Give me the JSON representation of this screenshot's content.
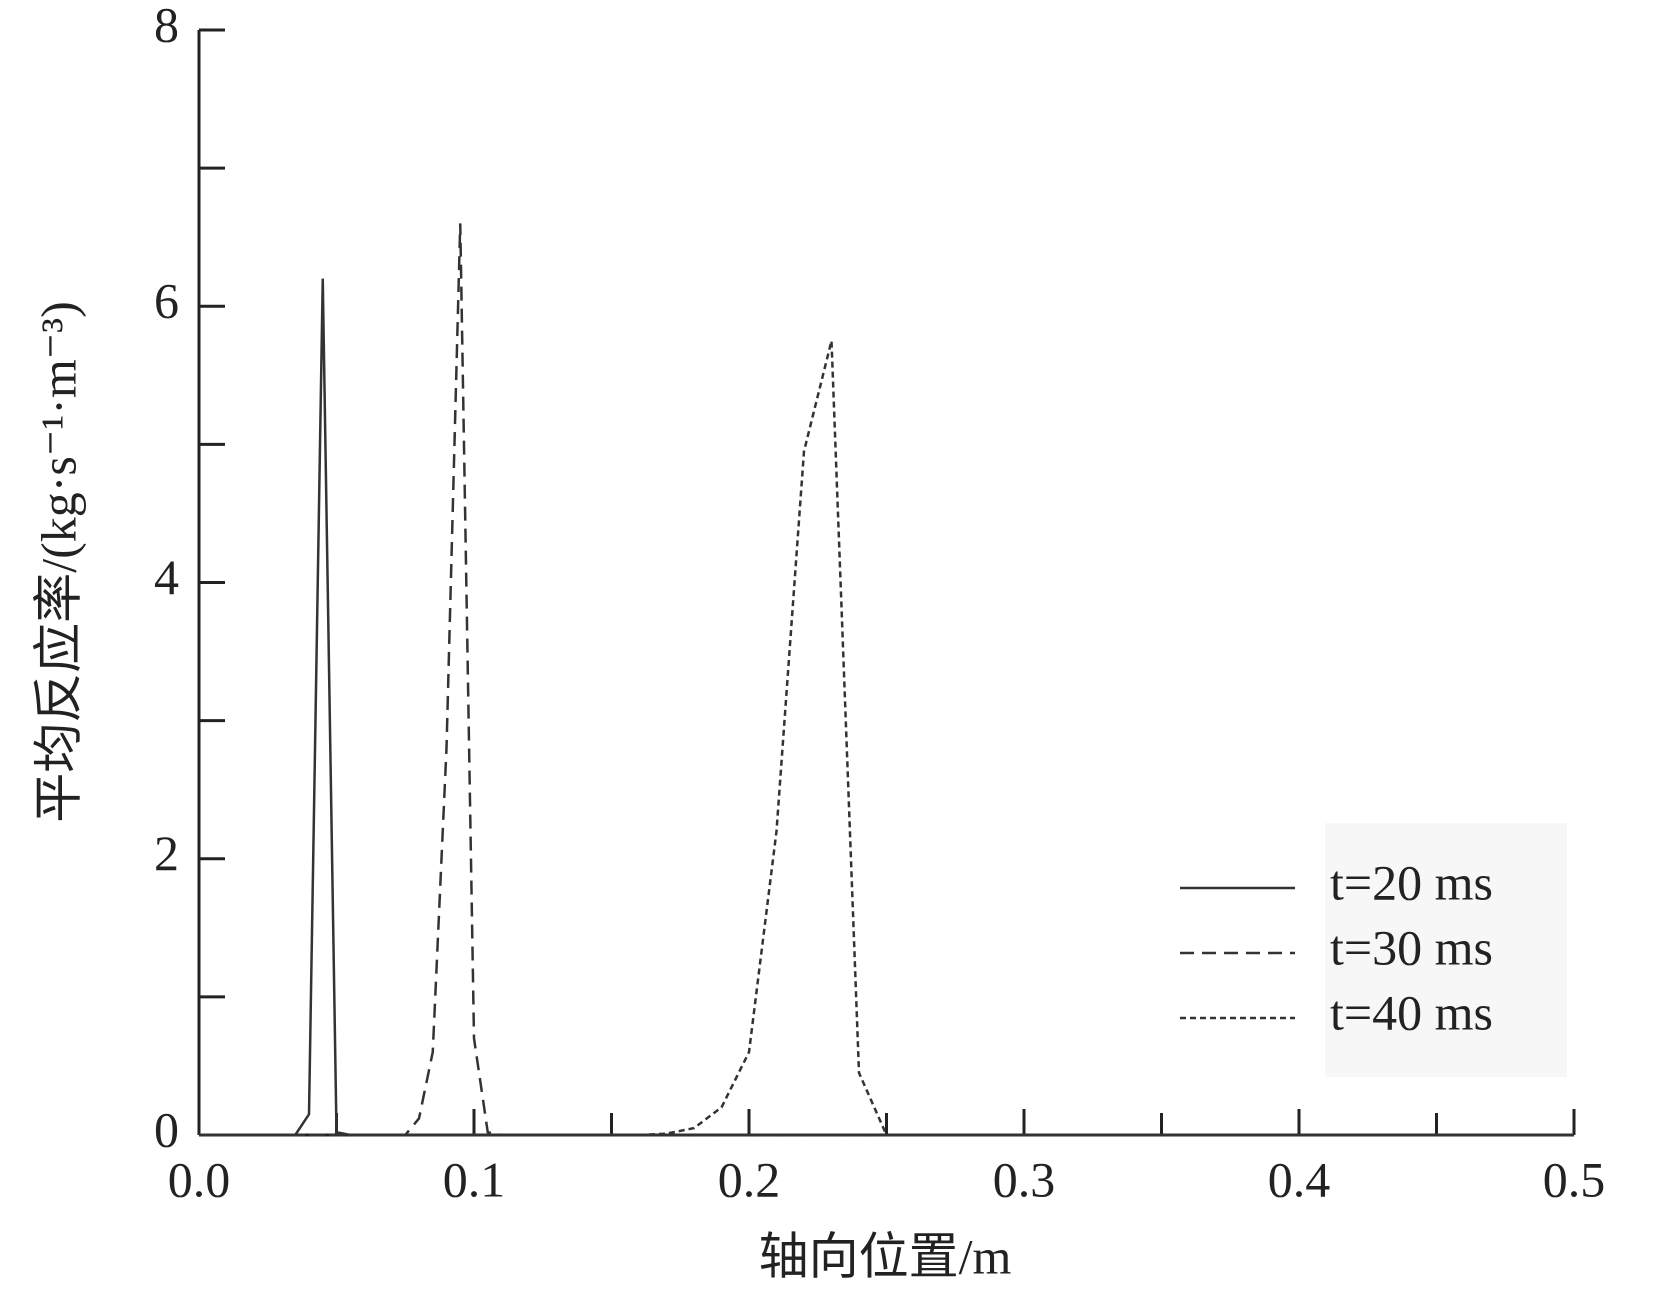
{
  "chart_data": {
    "type": "line",
    "xlabel": "轴向位置/m",
    "ylabel": "平均反应率/(kg·s⁻¹·m⁻³)",
    "xlim": [
      0,
      0.5
    ],
    "ylim": [
      0,
      8
    ],
    "xticks": [
      {
        "value": 0,
        "label": "0.0"
      },
      0.1,
      0.2,
      0.3,
      0.4,
      0.5
    ],
    "x_minor_ticks": [
      0.05,
      0.15,
      0.25,
      0.35,
      0.45
    ],
    "yticks": [
      0,
      2,
      4,
      6,
      8
    ],
    "y_minor_ticks": [
      1,
      3,
      5,
      7
    ],
    "legend": "lower right",
    "series": [
      {
        "name": "t=20 ms",
        "color": "#333333",
        "dash": "solid",
        "x": [
          0,
          0.035,
          0.04,
          0.045,
          0.05,
          0.055,
          0.5
        ],
        "values": [
          0,
          0,
          0.15,
          6.2,
          0.02,
          0,
          0
        ]
      },
      {
        "name": "t=30 ms",
        "color": "#333333",
        "dash": "dashed",
        "x": [
          0,
          0.075,
          0.08,
          0.085,
          0.09,
          0.095,
          0.1,
          0.105,
          0.11,
          0.5
        ],
        "values": [
          0,
          0,
          0.12,
          0.6,
          2.8,
          6.6,
          0.7,
          0.02,
          0,
          0
        ]
      },
      {
        "name": "t=40 ms",
        "color": "#333333",
        "dash": "dotted",
        "x": [
          0,
          0.16,
          0.17,
          0.18,
          0.19,
          0.2,
          0.21,
          0.22,
          0.23,
          0.24,
          0.25,
          0.5
        ],
        "values": [
          0,
          0,
          0.01,
          0.05,
          0.2,
          0.6,
          2.2,
          4.95,
          5.75,
          0.45,
          0,
          0
        ]
      }
    ]
  }
}
